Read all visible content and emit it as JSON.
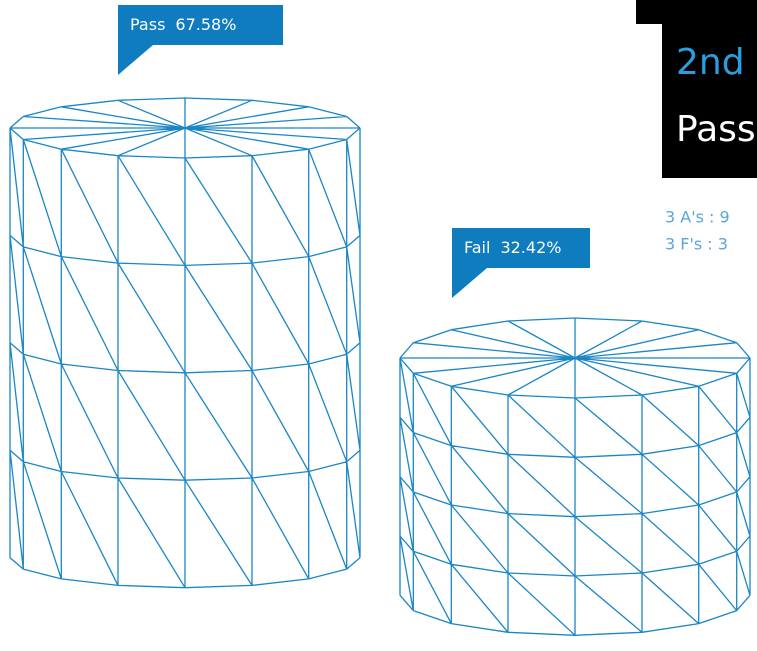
{
  "chart_data": {
    "type": "cylinder",
    "categories": [
      "Pass",
      "Fail"
    ],
    "values": [
      67.58,
      32.42
    ],
    "value_labels": [
      "67.58%",
      "32.42%"
    ],
    "color": "#1b86c6",
    "panel_title": "2nd",
    "panel_subtitle": "Pass",
    "annotations": [
      "3 A's : 9",
      "3 F's : 3"
    ]
  }
}
